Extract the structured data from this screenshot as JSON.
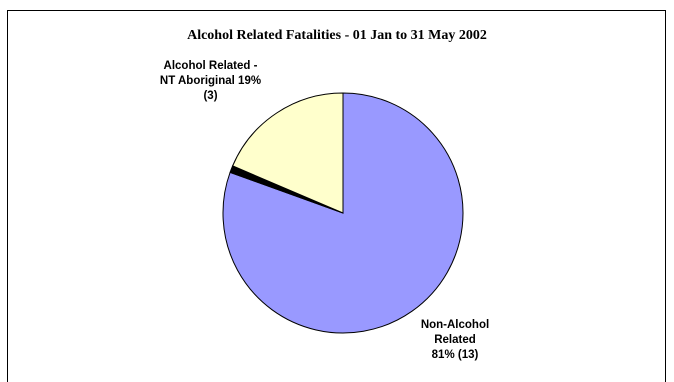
{
  "chart_data": {
    "type": "pie",
    "title": "Alcohol Related Fatalities - 01 Jan to 31 May 2002",
    "slices": [
      {
        "label_lines": [
          "Non-Alcohol",
          "Related",
          "81% (13)"
        ],
        "value": 13,
        "percent": 81,
        "color": "#9999ff"
      },
      {
        "label_lines": [],
        "value": 0.15,
        "percent": 0,
        "color": "#000000"
      },
      {
        "label_lines": [
          "Alcohol Related -",
          "NT Aboriginal 19%",
          "(3)"
        ],
        "value": 3,
        "percent": 19,
        "color": "#ffffcc"
      }
    ],
    "legend": "none"
  }
}
